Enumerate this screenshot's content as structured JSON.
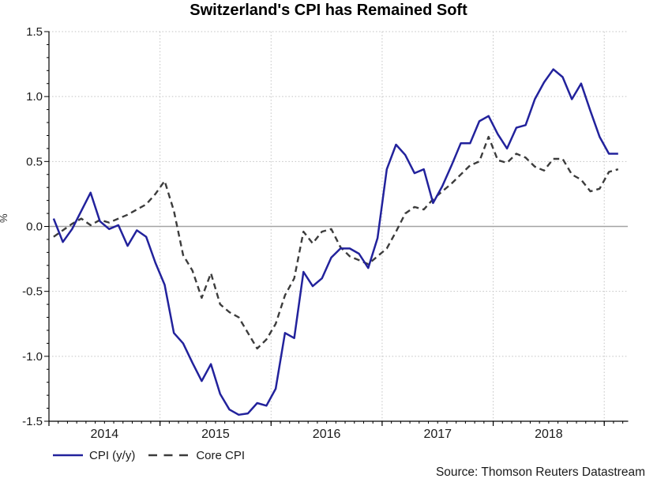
{
  "chart_data": {
    "type": "line",
    "title": "Switzerland's CPI has Remained Soft",
    "ylabel": "%",
    "ylim": [
      -1.5,
      1.5
    ],
    "y_tick_step": 0.5,
    "y_minor_tick_step": 0.1,
    "y_tick_labels": [
      "1.5",
      "1.0",
      "0.5",
      "0.0",
      "-0.5",
      "-1.0",
      "-1.5"
    ],
    "y_tick_values": [
      1.5,
      1.0,
      0.5,
      0.0,
      -0.5,
      -1.0,
      -1.5
    ],
    "x_year_labels": [
      "2014",
      "2015",
      "2016",
      "2017",
      "2018"
    ],
    "x_year_label_centers": [
      2014.5,
      2015.5,
      2016.5,
      2017.5,
      2018.5
    ],
    "x_gridline_years": [
      2015,
      2016,
      2017,
      2018,
      2019
    ],
    "x_axis_range_years": [
      2014.0,
      2019.29
    ],
    "grid": "dotted horizontal and vertical at major ticks, solid gray zero line",
    "legend_position": "bottom-left",
    "source_note": "Source: Thomson Reuters Datastream",
    "colors": {
      "cpi_line": "#22229C",
      "core_cpi_line": "#3C3C3C",
      "zero_line": "#A3A3A3",
      "gridline": "#C2C2C2",
      "axis": "#000000",
      "tick_text": "#1A1A1A",
      "title_text": "#000000"
    },
    "months": [
      "2014-01",
      "2014-02",
      "2014-03",
      "2014-04",
      "2014-05",
      "2014-06",
      "2014-07",
      "2014-08",
      "2014-09",
      "2014-10",
      "2014-11",
      "2014-12",
      "2015-01",
      "2015-02",
      "2015-03",
      "2015-04",
      "2015-05",
      "2015-06",
      "2015-07",
      "2015-08",
      "2015-09",
      "2015-10",
      "2015-11",
      "2015-12",
      "2016-01",
      "2016-02",
      "2016-03",
      "2016-04",
      "2016-05",
      "2016-06",
      "2016-07",
      "2016-08",
      "2016-09",
      "2016-10",
      "2016-11",
      "2016-12",
      "2017-01",
      "2017-02",
      "2017-03",
      "2017-04",
      "2017-05",
      "2017-06",
      "2017-07",
      "2017-08",
      "2017-09",
      "2017-10",
      "2017-11",
      "2017-12",
      "2018-01",
      "2018-02",
      "2018-03",
      "2018-04",
      "2018-05",
      "2018-06",
      "2018-07",
      "2018-08",
      "2018-09",
      "2018-10",
      "2018-11",
      "2018-12",
      "2019-01",
      "2019-02"
    ],
    "series": [
      {
        "name": "CPI (y/y)",
        "style": "solid",
        "values": [
          0.06,
          -0.12,
          -0.02,
          0.12,
          0.26,
          0.04,
          -0.02,
          0.01,
          -0.15,
          -0.03,
          -0.08,
          -0.28,
          -0.45,
          -0.82,
          -0.9,
          -1.05,
          -1.19,
          -1.06,
          -1.29,
          -1.41,
          -1.45,
          -1.44,
          -1.36,
          -1.38,
          -1.25,
          -0.82,
          -0.86,
          -0.35,
          -0.46,
          -0.4,
          -0.24,
          -0.17,
          -0.17,
          -0.21,
          -0.32,
          -0.09,
          0.44,
          0.63,
          0.55,
          0.41,
          0.44,
          0.18,
          0.31,
          0.47,
          0.64,
          0.64,
          0.81,
          0.85,
          0.71,
          0.6,
          0.76,
          0.78,
          0.98,
          1.11,
          1.21,
          1.15,
          0.98,
          1.1,
          0.89,
          0.69,
          0.56,
          0.56
        ]
      },
      {
        "name": "Core CPI",
        "style": "dashed",
        "values": [
          -0.08,
          -0.03,
          0.02,
          0.06,
          0.01,
          0.05,
          0.03,
          0.06,
          0.09,
          0.13,
          0.17,
          0.25,
          0.35,
          0.12,
          -0.22,
          -0.34,
          -0.55,
          -0.36,
          -0.6,
          -0.66,
          -0.7,
          -0.82,
          -0.94,
          -0.87,
          -0.75,
          -0.53,
          -0.4,
          -0.04,
          -0.13,
          -0.04,
          -0.02,
          -0.16,
          -0.23,
          -0.26,
          -0.29,
          -0.23,
          -0.17,
          -0.04,
          0.1,
          0.15,
          0.13,
          0.21,
          0.27,
          0.33,
          0.4,
          0.47,
          0.5,
          0.69,
          0.51,
          0.49,
          0.56,
          0.53,
          0.46,
          0.43,
          0.52,
          0.52,
          0.4,
          0.36,
          0.27,
          0.29,
          0.42,
          0.44
        ]
      }
    ]
  }
}
